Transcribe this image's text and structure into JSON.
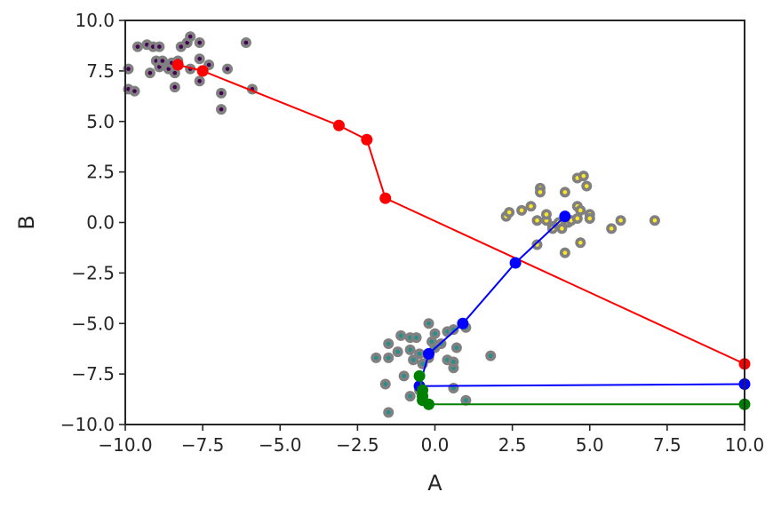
{
  "chart_data": {
    "type": "scatter",
    "title": "",
    "xlabel": "A",
    "ylabel": "B",
    "xlim": [
      -10,
      10
    ],
    "ylim": [
      -10,
      10
    ],
    "grid": false,
    "x_ticks": [
      -10,
      -7.5,
      -5,
      -2.5,
      0,
      2.5,
      5,
      7.5,
      10
    ],
    "y_ticks": [
      -10,
      -7.5,
      -5,
      -2.5,
      0,
      2.5,
      5,
      7.5,
      10
    ],
    "x_tick_labels": [
      "−10.0",
      "−7.5",
      "−5.0",
      "−2.5",
      "0.0",
      "2.5",
      "5.0",
      "7.5",
      "10.0"
    ],
    "y_tick_labels": [
      "−10.0",
      "−7.5",
      "−5.0",
      "−2.5",
      "0.0",
      "2.5",
      "5.0",
      "7.5",
      "10.0"
    ],
    "point_edge_color": "#808080",
    "clusters": [
      {
        "color": "#440154",
        "points": [
          [
            -9.9,
            7.6
          ],
          [
            -9.9,
            6.6
          ],
          [
            -9.7,
            6.5
          ],
          [
            -9.6,
            8.7
          ],
          [
            -9.3,
            8.8
          ],
          [
            -9.1,
            8.7
          ],
          [
            -8.9,
            8.7
          ],
          [
            -9.2,
            7.4
          ],
          [
            -9.0,
            8.0
          ],
          [
            -8.9,
            7.7
          ],
          [
            -8.8,
            8.0
          ],
          [
            -8.6,
            7.6
          ],
          [
            -8.5,
            7.9
          ],
          [
            -8.4,
            7.4
          ],
          [
            -8.3,
            8.0
          ],
          [
            -8.2,
            8.7
          ],
          [
            -8.0,
            8.9
          ],
          [
            -7.9,
            9.2
          ],
          [
            -7.6,
            8.9
          ],
          [
            -7.6,
            8.1
          ],
          [
            -7.9,
            7.6
          ],
          [
            -7.6,
            7.0
          ],
          [
            -7.3,
            7.8
          ],
          [
            -6.9,
            6.4
          ],
          [
            -6.7,
            7.6
          ],
          [
            -6.9,
            5.6
          ],
          [
            -6.1,
            8.9
          ],
          [
            -5.9,
            6.6
          ],
          [
            -8.4,
            6.7
          ]
        ]
      },
      {
        "color": "#21918c",
        "points": [
          [
            -1.5,
            -6.0
          ],
          [
            -1.1,
            -5.6
          ],
          [
            -0.8,
            -5.7
          ],
          [
            -0.6,
            -5.7
          ],
          [
            -0.2,
            -5.0
          ],
          [
            0.0,
            -5.5
          ],
          [
            0.4,
            -5.4
          ],
          [
            0.6,
            -5.3
          ],
          [
            1.0,
            -5.2
          ],
          [
            -1.9,
            -6.7
          ],
          [
            -1.5,
            -6.7
          ],
          [
            -1.2,
            -6.4
          ],
          [
            -0.8,
            -6.3
          ],
          [
            -0.7,
            -6.8
          ],
          [
            -0.5,
            -6.5
          ],
          [
            -0.4,
            -7.0
          ],
          [
            -0.2,
            -6.7
          ],
          [
            0.0,
            -6.2
          ],
          [
            0.2,
            -6.0
          ],
          [
            0.4,
            -6.8
          ],
          [
            0.6,
            -7.2
          ],
          [
            0.7,
            -6.2
          ],
          [
            0.6,
            -6.9
          ],
          [
            1.8,
            -6.6
          ],
          [
            -1.0,
            -7.6
          ],
          [
            -1.6,
            -8.0
          ],
          [
            -0.8,
            -8.6
          ],
          [
            -0.5,
            -8.3
          ],
          [
            0.6,
            -8.2
          ],
          [
            1.0,
            -8.8
          ],
          [
            -1.5,
            -9.4
          ],
          [
            -0.1,
            -5.9
          ]
        ]
      },
      {
        "color": "#fde725",
        "points": [
          [
            2.3,
            0.3
          ],
          [
            2.4,
            0.5
          ],
          [
            2.8,
            0.6
          ],
          [
            3.1,
            0.8
          ],
          [
            3.4,
            1.7
          ],
          [
            3.4,
            1.5
          ],
          [
            3.3,
            0.1
          ],
          [
            3.6,
            0.1
          ],
          [
            3.6,
            0.4
          ],
          [
            3.8,
            -0.2
          ],
          [
            3.8,
            -0.3
          ],
          [
            3.3,
            -1.1
          ],
          [
            4.0,
            0.0
          ],
          [
            4.1,
            -0.3
          ],
          [
            4.3,
            0.0
          ],
          [
            4.2,
            1.5
          ],
          [
            4.4,
            0.1
          ],
          [
            4.2,
            -1.5
          ],
          [
            4.6,
            2.2
          ],
          [
            4.8,
            2.3
          ],
          [
            4.9,
            1.8
          ],
          [
            4.6,
            0.8
          ],
          [
            4.7,
            0.6
          ],
          [
            4.6,
            0.2
          ],
          [
            5.0,
            0.4
          ],
          [
            5.0,
            0.2
          ],
          [
            4.7,
            -1.0
          ],
          [
            5.7,
            -0.3
          ],
          [
            6.0,
            0.1
          ],
          [
            7.1,
            0.1
          ]
        ]
      }
    ],
    "paths": [
      {
        "color": "#ff0000",
        "points": [
          [
            -8.3,
            7.8
          ],
          [
            -7.5,
            7.5
          ],
          [
            -3.1,
            4.8
          ],
          [
            -2.2,
            4.1
          ],
          [
            -1.6,
            1.2
          ],
          [
            10.0,
            -7.0
          ]
        ]
      },
      {
        "color": "#0000ff",
        "points": [
          [
            10.0,
            -8.0
          ],
          [
            -0.5,
            -8.1
          ],
          [
            -0.2,
            -6.5
          ],
          [
            0.9,
            -5.0
          ],
          [
            2.6,
            -2.0
          ],
          [
            4.2,
            0.3
          ]
        ]
      },
      {
        "color": "#008000",
        "points": [
          [
            10.0,
            -9.0
          ],
          [
            -0.2,
            -9.0
          ],
          [
            -0.4,
            -8.8
          ],
          [
            -0.4,
            -8.6
          ],
          [
            -0.4,
            -8.3
          ],
          [
            -0.5,
            -7.6
          ]
        ]
      }
    ]
  }
}
